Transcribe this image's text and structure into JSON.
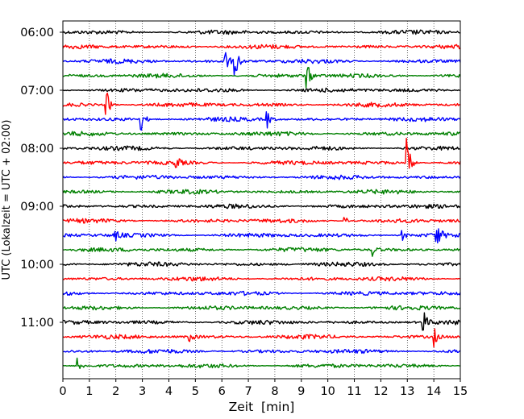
{
  "chart_data": {
    "type": "line",
    "subtype": "helicorder / seismogram drum plot",
    "title": "",
    "xlabel": "Zeit  [min]",
    "ylabel": "UTC (Lokalzeit = UTC + 02:00)",
    "xlim": [
      0,
      15
    ],
    "x_ticks": [
      "0",
      "1",
      "2",
      "3",
      "4",
      "5",
      "6",
      "7",
      "8",
      "9",
      "10",
      "11",
      "12",
      "13",
      "14",
      "15"
    ],
    "y_time_range": [
      "06:00",
      "12:00"
    ],
    "y_tick_labels": [
      "06:00",
      "07:00",
      "08:00",
      "09:00",
      "10:00",
      "11:00"
    ],
    "trace_interval_min": 15,
    "grid": {
      "vertical_dotted_every_min": 1
    },
    "colors_cycle": [
      "#000000",
      "#ff0000",
      "#0000ff",
      "#008000"
    ],
    "traces": [
      {
        "start": "06:00",
        "color": "#000000",
        "amp": 3,
        "events": []
      },
      {
        "start": "06:15",
        "color": "#ff0000",
        "amp": 3,
        "events": []
      },
      {
        "start": "06:30",
        "color": "#0000ff",
        "amp": 3,
        "events": [
          {
            "t": 6.15,
            "amp": 12
          },
          {
            "t": 6.5,
            "amp": 22
          }
        ]
      },
      {
        "start": "06:45",
        "color": "#008000",
        "amp": 3,
        "events": [
          {
            "t": 9.2,
            "amp": 18
          }
        ]
      },
      {
        "start": "07:00",
        "color": "#000000",
        "amp": 3,
        "events": []
      },
      {
        "start": "07:15",
        "color": "#ff0000",
        "amp": 3,
        "events": [
          {
            "t": 1.65,
            "amp": 18
          }
        ]
      },
      {
        "start": "07:30",
        "color": "#0000ff",
        "amp": 3,
        "events": [
          {
            "t": 2.95,
            "amp": 15
          },
          {
            "t": 7.7,
            "amp": 12
          }
        ]
      },
      {
        "start": "07:45",
        "color": "#008000",
        "amp": 3,
        "events": []
      },
      {
        "start": "08:00",
        "color": "#000000",
        "amp": 3,
        "events": []
      },
      {
        "start": "08:15",
        "color": "#ff0000",
        "amp": 3,
        "events": [
          {
            "t": 4.25,
            "amp": 10
          },
          {
            "t": 13.0,
            "amp": 30
          }
        ]
      },
      {
        "start": "08:30",
        "color": "#0000ff",
        "amp": 3,
        "events": []
      },
      {
        "start": "08:45",
        "color": "#008000",
        "amp": 3,
        "events": []
      },
      {
        "start": "09:00",
        "color": "#000000",
        "amp": 3,
        "events": []
      },
      {
        "start": "09:15",
        "color": "#ff0000",
        "amp": 3,
        "events": [
          {
            "t": 10.6,
            "amp": 9
          }
        ]
      },
      {
        "start": "09:30",
        "color": "#0000ff",
        "amp": 3,
        "events": [
          {
            "t": 2.0,
            "amp": 6
          },
          {
            "t": 12.8,
            "amp": 8
          },
          {
            "t": 14.1,
            "amp": 18
          }
        ]
      },
      {
        "start": "09:45",
        "color": "#008000",
        "amp": 3,
        "events": [
          {
            "t": 11.7,
            "amp": 8
          }
        ]
      },
      {
        "start": "10:00",
        "color": "#000000",
        "amp": 3,
        "events": []
      },
      {
        "start": "10:15",
        "color": "#ff0000",
        "amp": 3,
        "events": []
      },
      {
        "start": "10:30",
        "color": "#0000ff",
        "amp": 3,
        "events": []
      },
      {
        "start": "10:45",
        "color": "#008000",
        "amp": 3,
        "events": []
      },
      {
        "start": "11:00",
        "color": "#000000",
        "amp": 3,
        "events": [
          {
            "t": 13.6,
            "amp": 16
          }
        ]
      },
      {
        "start": "11:15",
        "color": "#ff0000",
        "amp": 3,
        "events": [
          {
            "t": 4.8,
            "amp": 6
          },
          {
            "t": 14.0,
            "amp": 12
          }
        ]
      },
      {
        "start": "11:30",
        "color": "#0000ff",
        "amp": 3,
        "events": []
      },
      {
        "start": "11:45",
        "color": "#008000",
        "amp": 3,
        "events": [
          {
            "t": 0.55,
            "amp": 12
          }
        ]
      }
    ]
  }
}
